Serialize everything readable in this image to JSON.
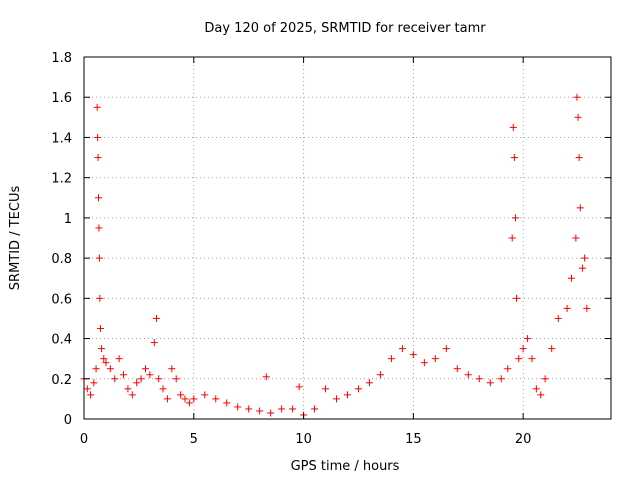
{
  "chart_data": {
    "type": "scatter",
    "title": "Day 120 of 2025, SRMTID for receiver tamr",
    "xlabel": "GPS time / hours",
    "ylabel": "SRMTID / TECUs",
    "xlim": [
      0,
      24
    ],
    "ylim": [
      0,
      1.8
    ],
    "x_ticks": [
      0,
      5,
      10,
      15,
      20
    ],
    "x_tick_labels": [
      "0",
      "5",
      "10",
      "15",
      "20"
    ],
    "y_ticks": [
      0,
      0.2,
      0.4,
      0.6,
      0.8,
      1.0,
      1.2,
      1.4,
      1.6,
      1.8
    ],
    "y_tick_labels": [
      "0",
      "0.2",
      "0.4",
      "0.6",
      "0.8",
      "1",
      "1.2",
      "1.4",
      "1.6",
      "1.8"
    ],
    "grid": true,
    "marker": "+",
    "series": [
      {
        "name": "SRMTID",
        "color": "#ff0000",
        "x": [
          0.0,
          0.15,
          0.3,
          0.45,
          0.55,
          0.6,
          0.62,
          0.64,
          0.66,
          0.68,
          0.7,
          0.72,
          0.75,
          0.8,
          0.9,
          1.0,
          1.2,
          1.4,
          1.6,
          1.8,
          2.0,
          2.2,
          2.4,
          2.6,
          2.8,
          3.0,
          3.2,
          3.3,
          3.4,
          3.6,
          3.8,
          4.0,
          4.2,
          4.4,
          4.6,
          4.8,
          5.0,
          5.5,
          6.0,
          6.5,
          7.0,
          7.5,
          8.0,
          8.3,
          8.5,
          9.0,
          9.5,
          9.8,
          10.0,
          10.5,
          11.0,
          11.5,
          12.0,
          12.5,
          13.0,
          13.5,
          14.0,
          14.5,
          15.0,
          15.5,
          16.0,
          16.5,
          17.0,
          17.5,
          18.0,
          18.5,
          19.0,
          19.3,
          19.5,
          19.55,
          19.6,
          19.65,
          19.7,
          19.8,
          20.0,
          20.2,
          20.4,
          20.6,
          20.8,
          21.0,
          21.3,
          21.6,
          22.0,
          22.2,
          22.4,
          22.45,
          22.5,
          22.55,
          22.6,
          22.7,
          22.8,
          22.9
        ],
        "y": [
          0.2,
          0.15,
          0.12,
          0.18,
          0.25,
          1.55,
          1.4,
          1.3,
          1.1,
          0.95,
          0.8,
          0.6,
          0.45,
          0.35,
          0.3,
          0.28,
          0.25,
          0.2,
          0.3,
          0.22,
          0.15,
          0.12,
          0.18,
          0.2,
          0.25,
          0.22,
          0.38,
          0.5,
          0.2,
          0.15,
          0.1,
          0.25,
          0.2,
          0.12,
          0.1,
          0.08,
          0.1,
          0.12,
          0.1,
          0.08,
          0.06,
          0.05,
          0.04,
          0.21,
          0.03,
          0.05,
          0.05,
          0.16,
          0.02,
          0.05,
          0.15,
          0.1,
          0.12,
          0.15,
          0.18,
          0.22,
          0.3,
          0.35,
          0.32,
          0.28,
          0.3,
          0.35,
          0.25,
          0.22,
          0.2,
          0.18,
          0.2,
          0.25,
          0.9,
          1.45,
          1.3,
          1.0,
          0.6,
          0.3,
          0.35,
          0.4,
          0.3,
          0.15,
          0.12,
          0.2,
          0.35,
          0.5,
          0.55,
          0.7,
          0.9,
          1.6,
          1.5,
          1.3,
          1.05,
          0.75,
          0.8,
          0.55
        ]
      }
    ]
  }
}
